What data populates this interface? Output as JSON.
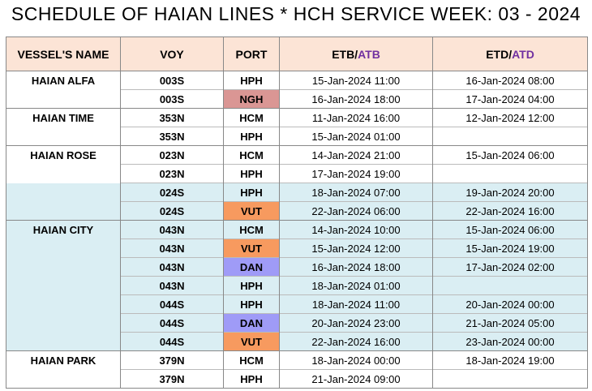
{
  "header": {
    "title": "SCHEDULE OF HAIAN LINES * HCH SERVICE WEEK: 03 - 2024"
  },
  "table": {
    "columns": {
      "vessel": "VESSEL'S NAME",
      "voy": "VOY",
      "port": "PORT",
      "etb": {
        "planned": "ETB",
        "sep": "/",
        "actual": "ATB"
      },
      "etd": {
        "planned": "ETD",
        "sep": "/",
        "actual": "ATD"
      }
    },
    "header_color": "#fce4d6",
    "actual_color": "#7030a0",
    "rows": [
      {
        "vessel": "HAIAN ALFA",
        "voy": "003S",
        "port": "HPH",
        "etb": "15-Jan-2024 11:00",
        "etd": "16-Jan-2024 08:00"
      },
      {
        "voy": "003S",
        "port": "NGH",
        "port_color": "#da9694",
        "etb": "16-Jan-2024 18:00",
        "etd": "17-Jan-2024 04:00"
      },
      {
        "vessel": "HAIAN TIME",
        "voy": "353N",
        "port": "HCM",
        "etb": "11-Jan-2024 16:00",
        "etd": "12-Jan-2024 12:00"
      },
      {
        "voy": "353N",
        "port": "HPH",
        "etb": "15-Jan-2024 01:00"
      },
      {
        "vessel": "HAIAN ROSE",
        "voy": "023N",
        "port": "HCM",
        "etb": "14-Jan-2024 21:00",
        "etd": "15-Jan-2024 06:00"
      },
      {
        "voy": "023N",
        "port": "HPH",
        "etb": "17-Jan-2024 19:00"
      },
      {
        "voy": "024S",
        "port": "HPH",
        "row_color": "#daeef3",
        "etb": "18-Jan-2024 07:00",
        "etd": "19-Jan-2024 20:00"
      },
      {
        "voy": "024S",
        "port": "VUT",
        "row_color": "#daeef3",
        "port_color": "#f79a5f",
        "etb": "22-Jan-2024 06:00",
        "etd": "22-Jan-2024 16:00"
      },
      {
        "vessel": "HAIAN CITY",
        "voy": "043N",
        "port": "HCM",
        "row_color": "#daeef3",
        "etb": "14-Jan-2024 10:00",
        "etd": "15-Jan-2024 06:00"
      },
      {
        "voy": "043N",
        "port": "VUT",
        "row_color": "#daeef3",
        "port_color": "#f79a5f",
        "etb": "15-Jan-2024 12:00",
        "etd": "15-Jan-2024 19:00"
      },
      {
        "voy": "043N",
        "port": "DAN",
        "row_color": "#daeef3",
        "port_color": "#9f9bf7",
        "etb": "16-Jan-2024 18:00",
        "etd": "17-Jan-2024 02:00"
      },
      {
        "voy": "043N",
        "port": "HPH",
        "row_color": "#daeef3",
        "etb": "18-Jan-2024 01:00"
      },
      {
        "voy": "044S",
        "port": "HPH",
        "row_color": "#daeef3",
        "etb": "18-Jan-2024 11:00",
        "etd": "20-Jan-2024 00:00"
      },
      {
        "voy": "044S",
        "port": "DAN",
        "row_color": "#daeef3",
        "port_color": "#9f9bf7",
        "etb": "20-Jan-2024 23:00",
        "etd": "21-Jan-2024 05:00"
      },
      {
        "voy": "044S",
        "port": "VUT",
        "row_color": "#daeef3",
        "port_color": "#f79a5f",
        "etb": "22-Jan-2024 16:00",
        "etd": "23-Jan-2024 00:00"
      },
      {
        "vessel": "HAIAN PARK",
        "voy": "379N",
        "port": "HCM",
        "etb": "18-Jan-2024 00:00",
        "etd": "18-Jan-2024 19:00"
      },
      {
        "voy": "379N",
        "port": "HPH",
        "etb": "21-Jan-2024 09:00"
      }
    ]
  }
}
